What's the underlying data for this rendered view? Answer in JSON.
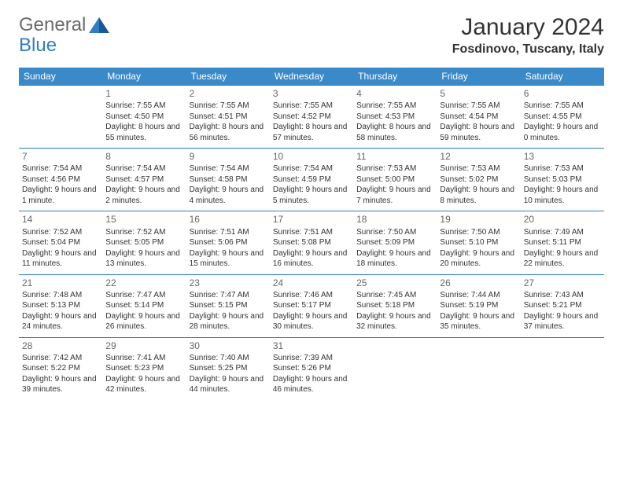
{
  "brand": {
    "name1": "General",
    "name2": "Blue",
    "text_color": "#6b6b6b",
    "accent_color": "#2f7fc2"
  },
  "title": "January 2024",
  "location": "Fosdinovo, Tuscany, Italy",
  "header_bg": "#3a89c9",
  "header_fg": "#ffffff",
  "border_color": "#2f7fc2",
  "weekdays": [
    "Sunday",
    "Monday",
    "Tuesday",
    "Wednesday",
    "Thursday",
    "Friday",
    "Saturday"
  ],
  "weeks": [
    [
      null,
      {
        "n": "1",
        "sunrise": "7:55 AM",
        "sunset": "4:50 PM",
        "daylight": "8 hours and 55 minutes."
      },
      {
        "n": "2",
        "sunrise": "7:55 AM",
        "sunset": "4:51 PM",
        "daylight": "8 hours and 56 minutes."
      },
      {
        "n": "3",
        "sunrise": "7:55 AM",
        "sunset": "4:52 PM",
        "daylight": "8 hours and 57 minutes."
      },
      {
        "n": "4",
        "sunrise": "7:55 AM",
        "sunset": "4:53 PM",
        "daylight": "8 hours and 58 minutes."
      },
      {
        "n": "5",
        "sunrise": "7:55 AM",
        "sunset": "4:54 PM",
        "daylight": "8 hours and 59 minutes."
      },
      {
        "n": "6",
        "sunrise": "7:55 AM",
        "sunset": "4:55 PM",
        "daylight": "9 hours and 0 minutes."
      }
    ],
    [
      {
        "n": "7",
        "sunrise": "7:54 AM",
        "sunset": "4:56 PM",
        "daylight": "9 hours and 1 minute."
      },
      {
        "n": "8",
        "sunrise": "7:54 AM",
        "sunset": "4:57 PM",
        "daylight": "9 hours and 2 minutes."
      },
      {
        "n": "9",
        "sunrise": "7:54 AM",
        "sunset": "4:58 PM",
        "daylight": "9 hours and 4 minutes."
      },
      {
        "n": "10",
        "sunrise": "7:54 AM",
        "sunset": "4:59 PM",
        "daylight": "9 hours and 5 minutes."
      },
      {
        "n": "11",
        "sunrise": "7:53 AM",
        "sunset": "5:00 PM",
        "daylight": "9 hours and 7 minutes."
      },
      {
        "n": "12",
        "sunrise": "7:53 AM",
        "sunset": "5:02 PM",
        "daylight": "9 hours and 8 minutes."
      },
      {
        "n": "13",
        "sunrise": "7:53 AM",
        "sunset": "5:03 PM",
        "daylight": "9 hours and 10 minutes."
      }
    ],
    [
      {
        "n": "14",
        "sunrise": "7:52 AM",
        "sunset": "5:04 PM",
        "daylight": "9 hours and 11 minutes."
      },
      {
        "n": "15",
        "sunrise": "7:52 AM",
        "sunset": "5:05 PM",
        "daylight": "9 hours and 13 minutes."
      },
      {
        "n": "16",
        "sunrise": "7:51 AM",
        "sunset": "5:06 PM",
        "daylight": "9 hours and 15 minutes."
      },
      {
        "n": "17",
        "sunrise": "7:51 AM",
        "sunset": "5:08 PM",
        "daylight": "9 hours and 16 minutes."
      },
      {
        "n": "18",
        "sunrise": "7:50 AM",
        "sunset": "5:09 PM",
        "daylight": "9 hours and 18 minutes."
      },
      {
        "n": "19",
        "sunrise": "7:50 AM",
        "sunset": "5:10 PM",
        "daylight": "9 hours and 20 minutes."
      },
      {
        "n": "20",
        "sunrise": "7:49 AM",
        "sunset": "5:11 PM",
        "daylight": "9 hours and 22 minutes."
      }
    ],
    [
      {
        "n": "21",
        "sunrise": "7:48 AM",
        "sunset": "5:13 PM",
        "daylight": "9 hours and 24 minutes."
      },
      {
        "n": "22",
        "sunrise": "7:47 AM",
        "sunset": "5:14 PM",
        "daylight": "9 hours and 26 minutes."
      },
      {
        "n": "23",
        "sunrise": "7:47 AM",
        "sunset": "5:15 PM",
        "daylight": "9 hours and 28 minutes."
      },
      {
        "n": "24",
        "sunrise": "7:46 AM",
        "sunset": "5:17 PM",
        "daylight": "9 hours and 30 minutes."
      },
      {
        "n": "25",
        "sunrise": "7:45 AM",
        "sunset": "5:18 PM",
        "daylight": "9 hours and 32 minutes."
      },
      {
        "n": "26",
        "sunrise": "7:44 AM",
        "sunset": "5:19 PM",
        "daylight": "9 hours and 35 minutes."
      },
      {
        "n": "27",
        "sunrise": "7:43 AM",
        "sunset": "5:21 PM",
        "daylight": "9 hours and 37 minutes."
      }
    ],
    [
      {
        "n": "28",
        "sunrise": "7:42 AM",
        "sunset": "5:22 PM",
        "daylight": "9 hours and 39 minutes."
      },
      {
        "n": "29",
        "sunrise": "7:41 AM",
        "sunset": "5:23 PM",
        "daylight": "9 hours and 42 minutes."
      },
      {
        "n": "30",
        "sunrise": "7:40 AM",
        "sunset": "5:25 PM",
        "daylight": "9 hours and 44 minutes."
      },
      {
        "n": "31",
        "sunrise": "7:39 AM",
        "sunset": "5:26 PM",
        "daylight": "9 hours and 46 minutes."
      },
      null,
      null,
      null
    ]
  ],
  "labels": {
    "sunrise": "Sunrise:",
    "sunset": "Sunset:",
    "daylight": "Daylight:"
  }
}
